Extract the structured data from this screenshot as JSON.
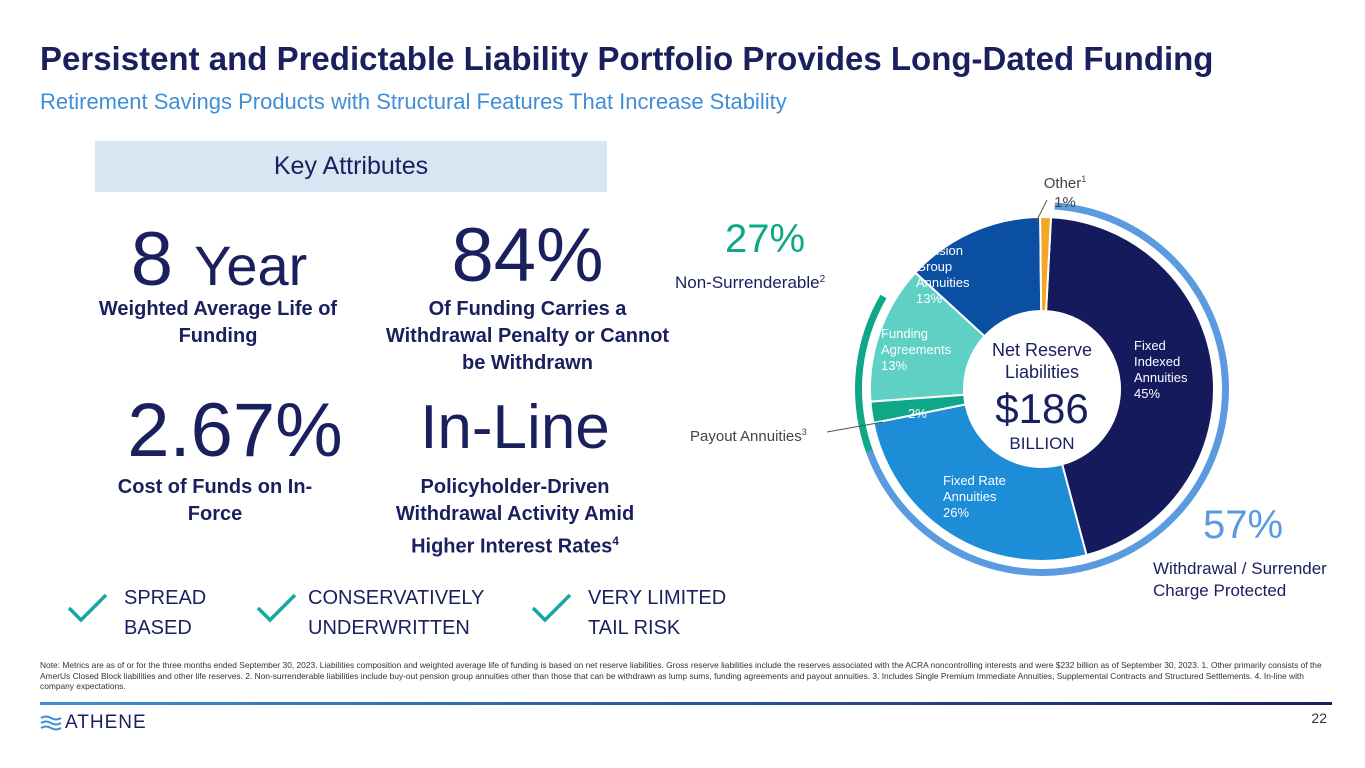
{
  "header": {
    "title": "Persistent and Predictable Liability Portfolio Provides Long-Dated Funding",
    "subtitle": "Retirement Savings Products with Structural Features That Increase Stability"
  },
  "key_attributes": {
    "heading": "Key Attributes",
    "items": [
      {
        "big_num": "8",
        "big_unit": "Year",
        "label": "Weighted Average Life of Funding"
      },
      {
        "big": "84%",
        "label": "Of Funding Carries a Withdrawal Penalty or Cannot be Withdrawn"
      },
      {
        "big": "2.67%",
        "label": "Cost of Funds on In-Force"
      },
      {
        "big": "In-Line",
        "label": "Policyholder-Driven Withdrawal Activity Amid Higher Interest Rates",
        "label_sup": "4"
      }
    ]
  },
  "checks": [
    {
      "line1": "SPREAD",
      "line2": "BASED"
    },
    {
      "line1": "CONSERVATIVELY",
      "line2": "UNDERWRITTEN"
    },
    {
      "line1": "VERY LIMITED",
      "line2": "TAIL RISK"
    }
  ],
  "chart_data": {
    "type": "pie",
    "title": "Net Reserve Liabilities",
    "center_value": "$186",
    "center_unit": "BILLION",
    "slices": [
      {
        "name": "Fixed Indexed Annuities",
        "lines": [
          "Fixed",
          "Indexed",
          "Annuities"
        ],
        "value": 45,
        "label": "45%",
        "color": "#141a5c",
        "text_color": "#ffffff"
      },
      {
        "name": "Fixed Rate Annuities",
        "lines": [
          "Fixed Rate",
          "Annuities"
        ],
        "value": 26,
        "label": "26%",
        "color": "#1c8dd6",
        "text_color": "#ffffff"
      },
      {
        "name": "Payout Annuities",
        "lines": [],
        "value": 2,
        "label": "2%",
        "color": "#0ea888",
        "text_color": "#ffffff"
      },
      {
        "name": "Funding Agreements",
        "lines": [
          "Funding",
          "Agreements"
        ],
        "value": 13,
        "label": "13%",
        "color": "#5fd0c4",
        "text_color": "#ffffff"
      },
      {
        "name": "Pension Group Annuities",
        "lines": [
          "Pension",
          "Group",
          "Annuities"
        ],
        "value": 13,
        "label": "13%",
        "color": "#0b4fa3",
        "text_color": "#ffffff"
      },
      {
        "name": "Other",
        "lines": [],
        "value": 1,
        "label": "1%",
        "color": "#f3a722",
        "text_color": "#1a1f5e"
      }
    ],
    "callouts": {
      "other_label": "Other",
      "other_sup": "1",
      "other_value": "1%",
      "payout_label": "Payout Annuities",
      "payout_sup": "3"
    },
    "outer_arcs": [
      {
        "name": "Non-Surrenderable",
        "value": 27,
        "label": "27%",
        "caption": "Non-Surrenderable",
        "sup": "2",
        "color": "#0ea888"
      },
      {
        "name": "Withdrawal / Surrender Charge Protected",
        "value": 57,
        "label": "57%",
        "caption_line1": "Withdrawal / Surrender",
        "caption_line2": "Charge Protected",
        "color": "#5a9be0"
      }
    ]
  },
  "footer": {
    "note": "Note: Metrics are as of or for the three months ended September 30, 2023. Liabilities composition and weighted average life of funding is based on net reserve liabilities. Gross reserve liabilities include the reserves associated with the ACRA noncontrolling interests and were $232 billion as of September 30, 2023. 1. Other primarily consists of the AmerUs Closed Block liabilities and other life reserves. 2. Non-surrenderable liabilities include buy-out pension group annuities other than those that can be withdrawn as lump sums, funding agreements and payout annuities. 3. Includes Single Premium Immediate Annuities, Supplemental Contracts and Structured Settlements. 4. In-line with company expectations.",
    "logo": "ATHENE",
    "page_number": "22"
  },
  "colors": {
    "navy": "#1a1f5e",
    "accent_blue": "#3f8ed8",
    "teal": "#0ea888",
    "check": "#13a89e"
  }
}
